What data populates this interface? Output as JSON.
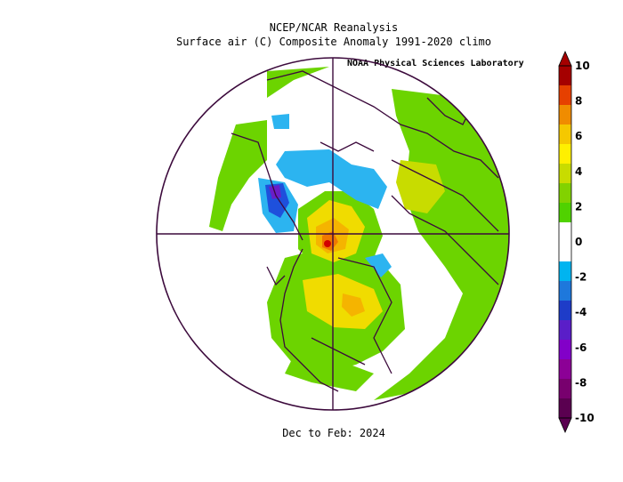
{
  "header": {
    "title": "NCEP/NCAR Reanalysis",
    "subtitle": "Surface air (C) Composite Anomaly 1991-2020 climo",
    "credit": "NOAA Physical Sciences Laboratory"
  },
  "footer": {
    "period": "Dec to Feb: 2024"
  },
  "colorbar": {
    "labels": [
      "10",
      "8",
      "6",
      "4",
      "2",
      "0",
      "-2",
      "-4",
      "-6",
      "-8",
      "-10"
    ],
    "colors": [
      "#a50000",
      "#e64000",
      "#f08c00",
      "#f5c800",
      "#fff000",
      "#c8dc00",
      "#82d200",
      "#50d200",
      "#ffffff",
      "#ffffff",
      "#00b4f0",
      "#1e78dc",
      "#1e3cc8",
      "#5a1ec8",
      "#8200c8",
      "#8c0096",
      "#78006e",
      "#5a0050"
    ]
  },
  "colors": {
    "light_green": "#6cd400",
    "yellow_green": "#b4dc00",
    "yellow": "#f0dc00",
    "gold": "#f5b400",
    "orange": "#f07800",
    "red": "#d20000",
    "cyan": "#2cb4f0",
    "blue": "#1e50dc",
    "purple": "#6a1ec8",
    "outline": "#3c0a3c"
  }
}
